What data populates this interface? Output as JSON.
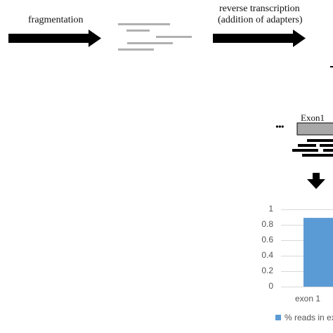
{
  "steps": {
    "fragmentation_label": "fragmentation",
    "reverse_transcription_label": "reverse transcription",
    "adapters_label": "(addition of adapters)"
  },
  "exon_diagram": {
    "exon_label": "Exon1",
    "ellipsis": "•••"
  },
  "chart_data": {
    "type": "bar",
    "categories": [
      "exon 1"
    ],
    "series": [
      {
        "name": "% reads in ex",
        "values": [
          0.89
        ]
      }
    ],
    "y_ticks": [
      "1",
      "0.8",
      "0.6",
      "0.4",
      "0.2",
      "0"
    ],
    "ylim": [
      0,
      1
    ],
    "grid": true,
    "legend_position": "bottom"
  },
  "colors": {
    "arrow": "#000000",
    "fragment": "#b0b0b0",
    "exon_box": "#a8a8a8",
    "bar": "#5b9bd5",
    "grid": "#d9d9d9"
  }
}
